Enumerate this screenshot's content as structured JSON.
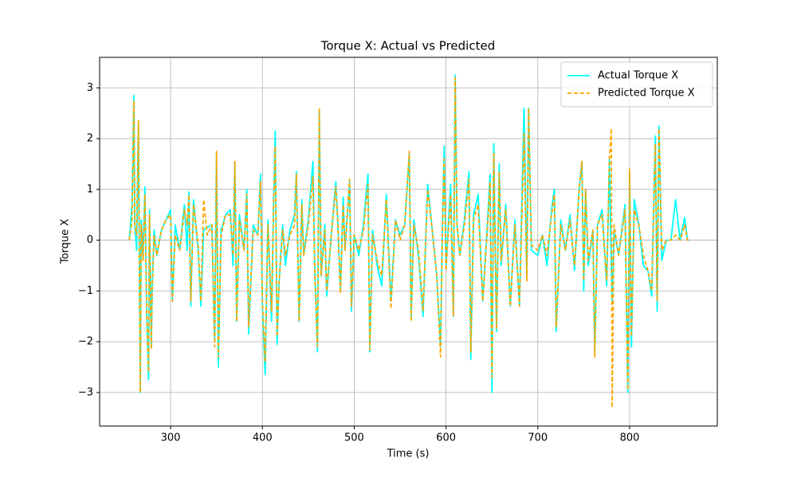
{
  "chart_data": {
    "type": "line",
    "title": "Torque X: Actual vs Predicted",
    "xlabel": "Time (s)",
    "ylabel": "Torque X",
    "xlim": [
      222.7,
      895.5
    ],
    "ylim": [
      -3.66,
      3.6
    ],
    "xticks": [
      300,
      400,
      500,
      600,
      700,
      800
    ],
    "yticks": [
      {
        "value": -3,
        "label": "−3"
      },
      {
        "value": -2,
        "label": "−2"
      },
      {
        "value": -1,
        "label": "−1"
      },
      0,
      1,
      2,
      3
    ],
    "grid": true,
    "legend": "upper right",
    "x": [
      255,
      258,
      260,
      261,
      263,
      265,
      267,
      268,
      270,
      272,
      274,
      276,
      277,
      279,
      280,
      282,
      285,
      290,
      295,
      300,
      302,
      305,
      310,
      315,
      318,
      320,
      322,
      325,
      330,
      333,
      336,
      340,
      345,
      348,
      350,
      352,
      355,
      360,
      365,
      368,
      370,
      372,
      375,
      380,
      383,
      385,
      390,
      395,
      398,
      400,
      403,
      406,
      410,
      412,
      414,
      416,
      418,
      422,
      425,
      430,
      435,
      437,
      440,
      443,
      445,
      450,
      455,
      457,
      460,
      462,
      464,
      468,
      470,
      475,
      480,
      482,
      485,
      488,
      490,
      495,
      497,
      500,
      505,
      510,
      515,
      517,
      520,
      525,
      530,
      535,
      540,
      545,
      550,
      555,
      560,
      562,
      565,
      570,
      575,
      580,
      585,
      590,
      594,
      596,
      598,
      600,
      605,
      608,
      610,
      612,
      615,
      620,
      625,
      627,
      630,
      635,
      640,
      645,
      648,
      650,
      652,
      655,
      658,
      660,
      665,
      670,
      675,
      680,
      685,
      688,
      690,
      693,
      700,
      705,
      710,
      715,
      718,
      720,
      725,
      730,
      735,
      740,
      745,
      748,
      750,
      752,
      755,
      760,
      762,
      765,
      770,
      775,
      778,
      780,
      781,
      783,
      788,
      795,
      798,
      800,
      802,
      805,
      810,
      815,
      820,
      824,
      828,
      830,
      832,
      835,
      840,
      845,
      850,
      855,
      860,
      863,
      865
    ],
    "series": [
      {
        "name": "Actual Torque X",
        "color": "#00ffff",
        "linestyle": "solid",
        "values": [
          0,
          0.7,
          2.85,
          0.3,
          -0.2,
          2.3,
          -3.0,
          0.4,
          -0.3,
          1.05,
          -1.5,
          -2.75,
          0.6,
          -2.1,
          -0.9,
          0.2,
          -0.3,
          0.2,
          0.4,
          0.6,
          -1.2,
          0.3,
          -0.2,
          0.7,
          -0.2,
          0.95,
          -1.3,
          0.8,
          -0.2,
          -1.3,
          0.2,
          0.25,
          0.3,
          -2.0,
          1.7,
          -2.5,
          0.2,
          0.5,
          0.6,
          -0.5,
          1.55,
          -1.6,
          0.5,
          -0.2,
          1.0,
          -1.85,
          0.3,
          0.1,
          1.3,
          -1.3,
          -2.65,
          0.4,
          -1.6,
          0.6,
          2.15,
          -2.05,
          -0.9,
          0.3,
          -0.5,
          0.2,
          0.5,
          1.35,
          -1.6,
          0.8,
          -0.3,
          0.4,
          1.55,
          -0.5,
          -2.2,
          2.55,
          -0.7,
          0.3,
          -1.1,
          0.1,
          1.15,
          0.4,
          -1.0,
          0.85,
          -0.2,
          1.15,
          -1.4,
          0.1,
          -0.3,
          0.3,
          1.3,
          -2.2,
          0.2,
          -0.5,
          -0.9,
          0.9,
          -1.2,
          0.4,
          0.1,
          0.3,
          1.7,
          -1.5,
          0.4,
          -0.3,
          -1.5,
          1.1,
          0.2,
          -0.7,
          -2.1,
          0.2,
          1.85,
          -0.5,
          1.1,
          -1.5,
          3.25,
          0.3,
          -0.3,
          0.4,
          1.35,
          -2.35,
          0.5,
          0.9,
          -1.2,
          0.3,
          1.3,
          -3.0,
          1.9,
          -1.8,
          1.5,
          -0.5,
          0.7,
          -1.3,
          0.4,
          -1.3,
          2.6,
          -0.7,
          2.6,
          -0.2,
          -0.3,
          0.1,
          -0.5,
          0.6,
          1.0,
          -1.8,
          0.4,
          -0.2,
          0.5,
          -0.6,
          1.0,
          1.55,
          -1.0,
          1.0,
          -0.5,
          0.2,
          -2.2,
          0.3,
          0.6,
          -0.9,
          1.6,
          -0.5,
          -1.2,
          0.2,
          -0.3,
          0.7,
          -3.0,
          1.35,
          -2.1,
          0.8,
          0.3,
          -0.5,
          -0.6,
          -1.1,
          2.05,
          -1.4,
          2.25,
          -0.4,
          0.0,
          0.0,
          0.8,
          0.0,
          0.45,
          0.0,
          0.0
        ]
      },
      {
        "name": "Predicted Torque X",
        "color": "#ffa500",
        "linestyle": "dashed",
        "values": [
          0,
          0.4,
          2.75,
          0.3,
          0.1,
          2.35,
          -3.0,
          0.3,
          -0.4,
          0.9,
          -1.4,
          -2.6,
          0.5,
          -2.15,
          -1.0,
          0.1,
          -0.3,
          0.2,
          0.4,
          0.5,
          -1.2,
          0.1,
          -0.2,
          0.6,
          0.3,
          0.9,
          -1.2,
          0.7,
          -0.1,
          -1.2,
          0.8,
          0.1,
          0.3,
          -2.1,
          1.75,
          -2.3,
          0.1,
          0.5,
          0.5,
          -0.3,
          1.55,
          -1.6,
          0.4,
          -0.2,
          0.9,
          -1.7,
          0.2,
          0.1,
          1.15,
          -1.2,
          -2.4,
          0.3,
          -1.4,
          0.5,
          1.85,
          -1.9,
          -0.9,
          0.2,
          -0.3,
          0.1,
          0.3,
          1.3,
          -1.6,
          0.7,
          -0.3,
          0.3,
          1.25,
          -0.6,
          -2.1,
          2.6,
          -0.7,
          0.2,
          -1.0,
          0.1,
          1.05,
          0.4,
          -1.05,
          0.7,
          -0.2,
          1.2,
          -1.3,
          0.1,
          -0.2,
          0.2,
          1.1,
          -2.15,
          0.1,
          -0.4,
          -0.7,
          0.8,
          -1.35,
          0.4,
          0.0,
          0.3,
          1.75,
          -1.6,
          0.3,
          -0.2,
          -1.4,
          1.0,
          0.2,
          -0.7,
          -2.3,
          0.1,
          1.6,
          -0.6,
          0.9,
          -1.5,
          3.2,
          0.3,
          -0.3,
          0.3,
          1.2,
          -2.2,
          0.4,
          0.7,
          -1.2,
          0.2,
          1.15,
          -2.7,
          1.7,
          -1.75,
          1.35,
          -0.4,
          0.6,
          -1.3,
          0.3,
          -1.3,
          2.1,
          -0.8,
          2.6,
          -0.1,
          -0.2,
          0.1,
          -0.3,
          0.5,
          0.9,
          -1.7,
          0.3,
          -0.2,
          0.4,
          -0.5,
          1.0,
          1.55,
          -0.8,
          1.0,
          -0.4,
          0.2,
          -2.3,
          0.3,
          0.5,
          -0.8,
          1.6,
          2.2,
          -3.3,
          0.3,
          -0.3,
          0.6,
          -2.95,
          1.4,
          -1.9,
          0.6,
          0.3,
          -0.3,
          -0.6,
          -1.0,
          1.9,
          -1.2,
          2.2,
          -0.2,
          0.0,
          0.0,
          0.1,
          0.0,
          0.3,
          0.0,
          0.0
        ]
      }
    ]
  }
}
